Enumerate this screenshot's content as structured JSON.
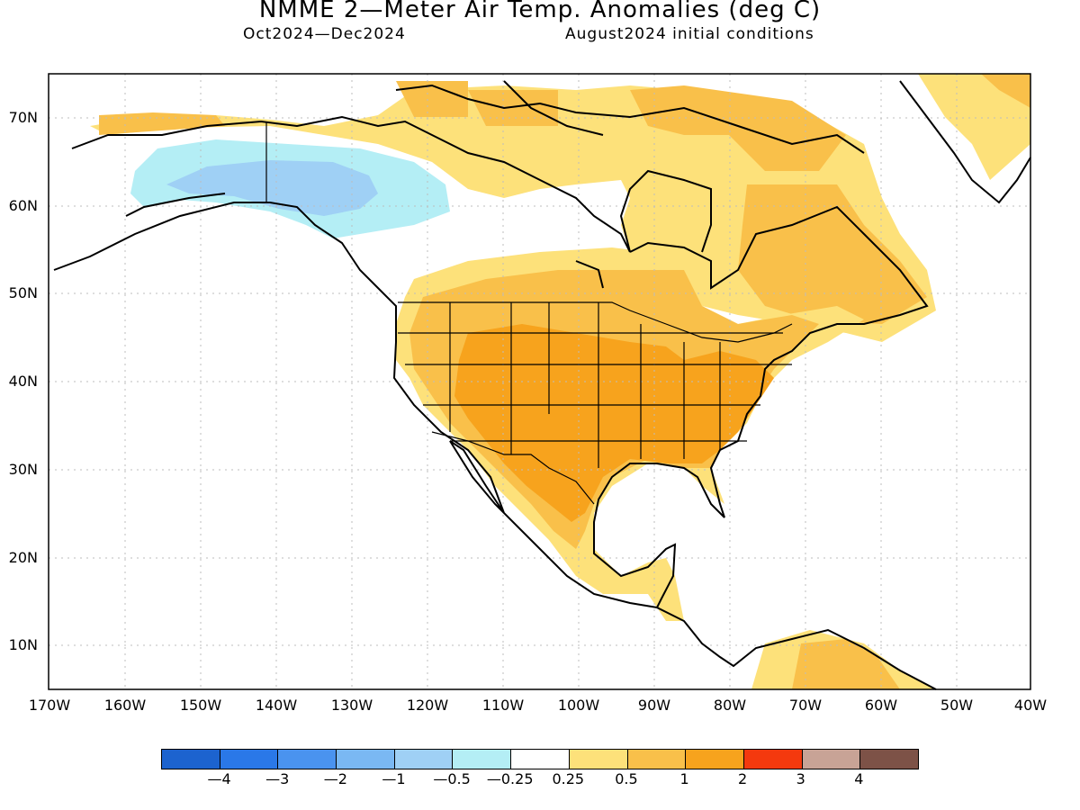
{
  "header": {
    "title": "NMME 2—Meter Air Temp. Anomalies (deg C)",
    "period": "Oct2024—Dec2024",
    "initial_conditions": "August2024 initial conditions"
  },
  "map": {
    "x_ticks": [
      "170W",
      "160W",
      "150W",
      "140W",
      "130W",
      "120W",
      "110W",
      "100W",
      "90W",
      "80W",
      "70W",
      "60W",
      "50W",
      "40W"
    ],
    "y_ticks": [
      "70N",
      "60N",
      "50N",
      "40N",
      "30N",
      "20N",
      "10N"
    ],
    "colors": {
      "neg_4": "#1c63cf",
      "neg_3": "#2a78e8",
      "neg_2": "#4a93ef",
      "neg_1": "#7ab8f3",
      "neg_05": "#9fd0f5",
      "neg_025": "#b4eef5",
      "neutral": "#ffffff",
      "pos_025": "#fde17a",
      "pos_05": "#f9c04a",
      "pos_1": "#f7a31d",
      "pos_2": "#f4390e",
      "pos_3": "#c8a396",
      "pos_4": "#7d5247"
    }
  },
  "colorbar": {
    "labels": [
      "—4",
      "—3",
      "—2",
      "—1",
      "—0.5",
      "—0.25",
      "0.25",
      "0.5",
      "1",
      "2",
      "3",
      "4"
    ],
    "colors": [
      "#1c63cf",
      "#2a78e8",
      "#4a93ef",
      "#7ab8f3",
      "#9fd0f5",
      "#b4eef5",
      "#ffffff",
      "#fde17a",
      "#f9c04a",
      "#f7a31d",
      "#f4390e",
      "#c8a396",
      "#7d5247"
    ]
  }
}
